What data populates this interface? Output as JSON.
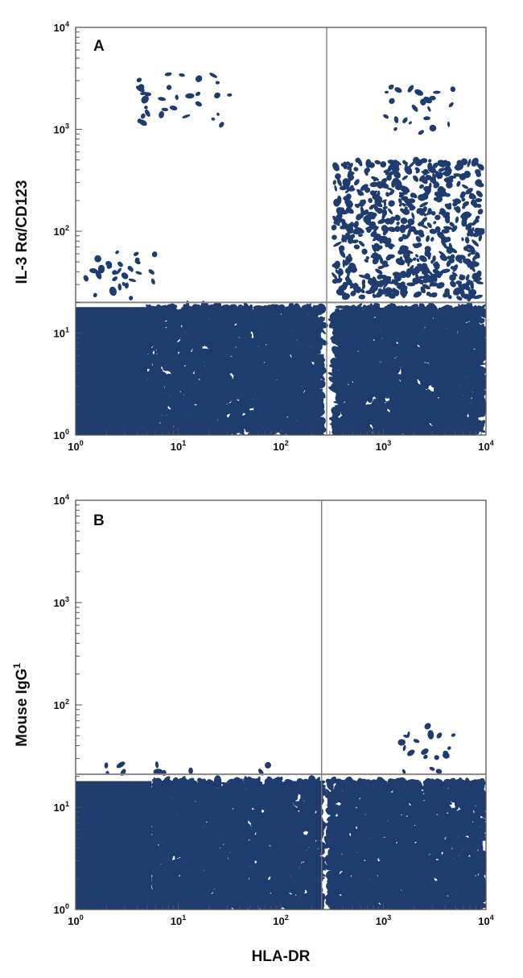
{
  "chart_data": [
    {
      "type": "scatter",
      "panel_label": "A",
      "xlabel": "",
      "ylabel": "IL-3 Rα/CD123",
      "x_scale": "log",
      "y_scale": "log",
      "xlim": [
        1,
        10000
      ],
      "ylim": [
        1,
        10000
      ],
      "x_ticks": [
        {
          "base": "10",
          "exp": "0"
        },
        {
          "base": "10",
          "exp": "1"
        },
        {
          "base": "10",
          "exp": "2"
        },
        {
          "base": "10",
          "exp": "3"
        },
        {
          "base": "10",
          "exp": "4"
        }
      ],
      "y_ticks": [
        {
          "base": "10",
          "exp": "0"
        },
        {
          "base": "10",
          "exp": "1"
        },
        {
          "base": "10",
          "exp": "2"
        },
        {
          "base": "10",
          "exp": "3"
        },
        {
          "base": "10",
          "exp": "4"
        }
      ],
      "quadrant_gates": {
        "x": 280,
        "y": 20
      },
      "point_color": "#1f3c6e",
      "regions": [
        {
          "x": [
            1,
            5
          ],
          "y": [
            1,
            18
          ],
          "density": "solid"
        },
        {
          "x": [
            5,
            250
          ],
          "y": [
            1,
            18
          ],
          "density": "high"
        },
        {
          "x": [
            330,
            9500
          ],
          "y": [
            1,
            18
          ],
          "density": "high"
        },
        {
          "x": [
            330,
            9000
          ],
          "y": [
            22,
            500
          ],
          "density": "medium"
        },
        {
          "x": [
            4,
            35
          ],
          "y": [
            1100,
            3500
          ],
          "density": "sparse"
        },
        {
          "x": [
            1000,
            5000
          ],
          "y": [
            800,
            2600
          ],
          "density": "sparse"
        },
        {
          "x": [
            1,
            6
          ],
          "y": [
            20,
            75
          ],
          "density": "sparse"
        }
      ]
    },
    {
      "type": "scatter",
      "panel_label": "B",
      "xlabel": "HLA-DR",
      "ylabel": "Mouse IgG",
      "ylabel_superscript": "1",
      "x_scale": "log",
      "y_scale": "log",
      "xlim": [
        1,
        10000
      ],
      "ylim": [
        1,
        10000
      ],
      "x_ticks": [
        {
          "base": "10",
          "exp": "0"
        },
        {
          "base": "10",
          "exp": "1"
        },
        {
          "base": "10",
          "exp": "2"
        },
        {
          "base": "10",
          "exp": "3"
        },
        {
          "base": "10",
          "exp": "4"
        }
      ],
      "y_ticks": [
        {
          "base": "10",
          "exp": "0"
        },
        {
          "base": "10",
          "exp": "1"
        },
        {
          "base": "10",
          "exp": "2"
        },
        {
          "base": "10",
          "exp": "3"
        },
        {
          "base": "10",
          "exp": "4"
        }
      ],
      "quadrant_gates": {
        "x": 250,
        "y": 21
      },
      "point_color": "#1f3c6e",
      "regions": [
        {
          "x": [
            1,
            5.5
          ],
          "y": [
            1,
            18
          ],
          "density": "solid"
        },
        {
          "x": [
            5.5,
            250
          ],
          "y": [
            1,
            18
          ],
          "density": "high"
        },
        {
          "x": [
            290,
            9500
          ],
          "y": [
            1,
            18
          ],
          "density": "high"
        },
        {
          "x": [
            1.5,
            80
          ],
          "y": [
            21,
            26
          ],
          "density": "sparse"
        },
        {
          "x": [
            1500,
            6000
          ],
          "y": [
            21,
            65
          ],
          "density": "sparse"
        }
      ]
    }
  ]
}
